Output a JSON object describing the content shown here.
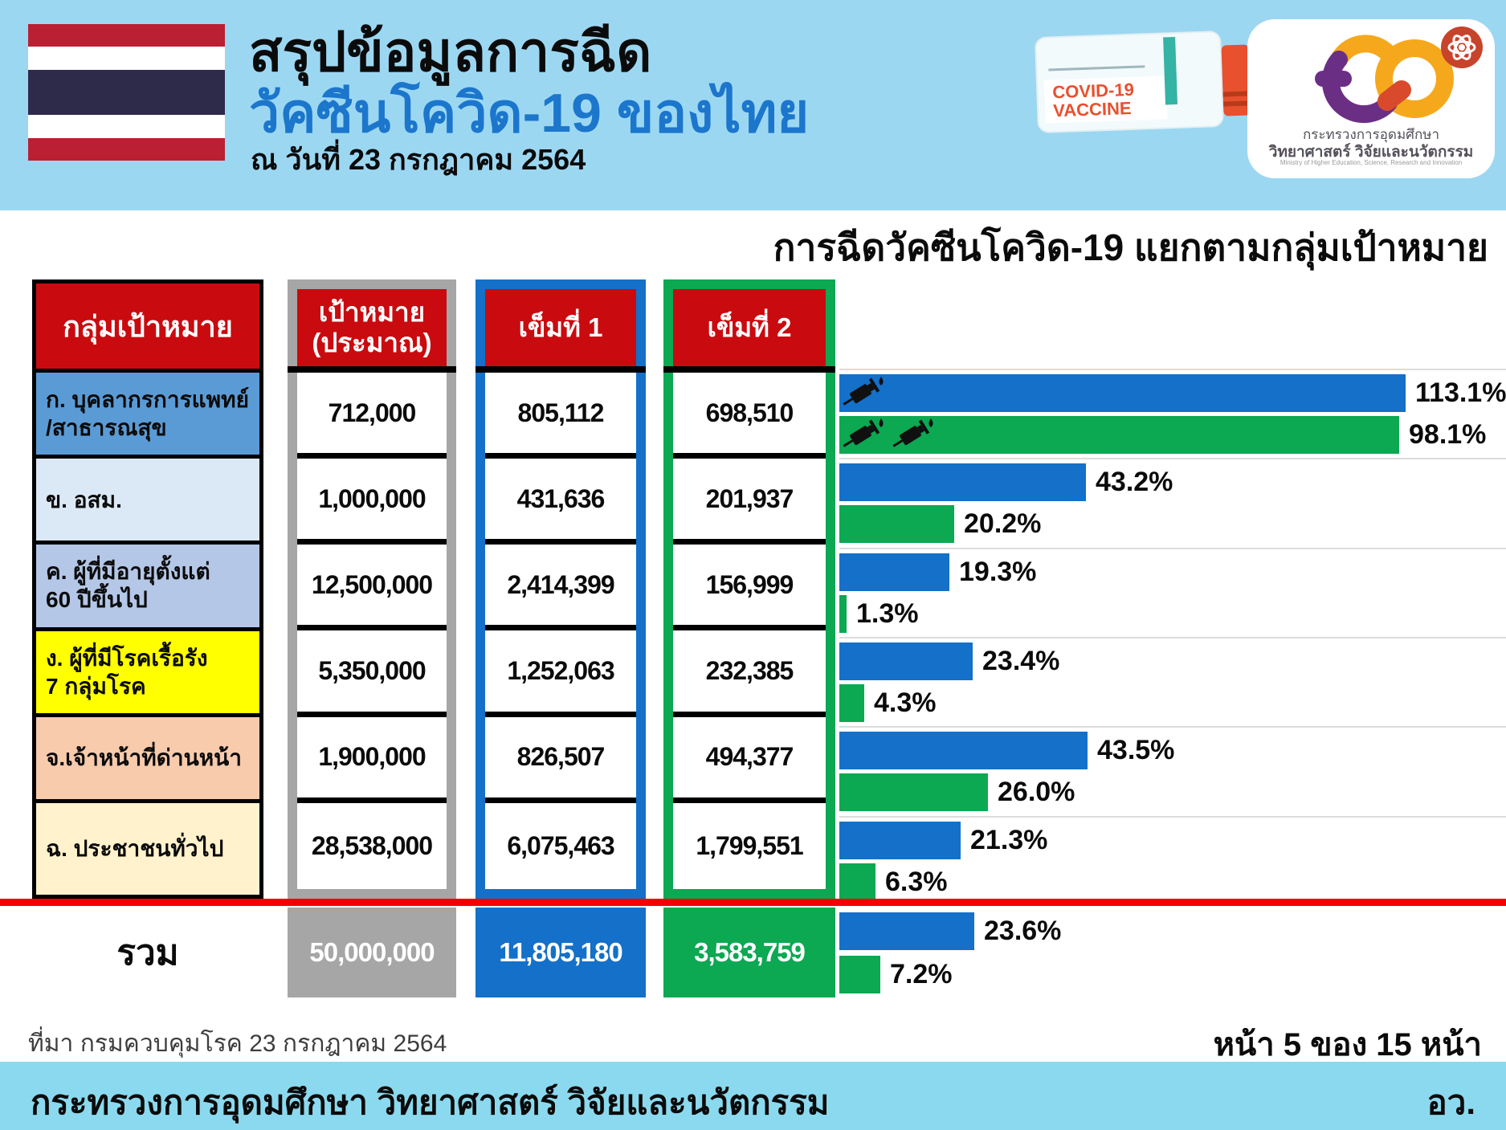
{
  "header": {
    "title_line1": "สรุปข้อมูลการฉีด",
    "title_line2": "วัคซีนโควิด-19 ของไทย",
    "date_line": "ณ วันที่ 23 กรกฎาคม 2564",
    "vial_label": "COVID-19 VACCINE",
    "logo": {
      "line1": "กระทรวงการอุดมศึกษา",
      "line2": "วิทยาศาสตร์ วิจัยและนวัตกรรม",
      "line3": "Ministry of Higher Education, Science, Research and Innovation"
    }
  },
  "chart_title": "การฉีดวัคซีนโควิด-19 แยกตามกลุ่มเป้าหมาย",
  "table": {
    "header_group": "กลุ่มเป้าหมาย",
    "header_target": "เป้าหมาย\n(ประมาณ)",
    "header_dose1": "เข็มที่ 1",
    "header_dose2": "เข็มที่ 2"
  },
  "groups": [
    {
      "label": "ก. บุคลากรการแพทย์\n/สาธารณสุข",
      "bg": "#5B9BD5",
      "target": "712,000",
      "dose1": "805,112",
      "dose2": "698,510",
      "dose1_pct": 113.1,
      "dose2_pct": 98.1,
      "syringes_dose1": 1,
      "syringes_dose2": 2
    },
    {
      "label": "ข. อสม.",
      "bg": "#DBE8F6",
      "target": "1,000,000",
      "dose1": "431,636",
      "dose2": "201,937",
      "dose1_pct": 43.2,
      "dose2_pct": 20.2,
      "syringes_dose1": 0,
      "syringes_dose2": 0
    },
    {
      "label": "ค. ผู้ที่มีอายุตั้งแต่\n60 ปีขึ้นไป",
      "bg": "#B4C7E7",
      "target": "12,500,000",
      "dose1": "2,414,399",
      "dose2": "156,999",
      "dose1_pct": 19.3,
      "dose2_pct": 1.3,
      "syringes_dose1": 0,
      "syringes_dose2": 0
    },
    {
      "label": "ง. ผู้ที่มีโรคเรื้อรัง\n7 กลุ่มโรค",
      "bg": "#FFFF00",
      "target": "5,350,000",
      "dose1": "1,252,063",
      "dose2": "232,385",
      "dose1_pct": 23.4,
      "dose2_pct": 4.3,
      "syringes_dose1": 0,
      "syringes_dose2": 0
    },
    {
      "label": "จ.เจ้าหน้าที่ด่านหน้า",
      "bg": "#F8CBAD",
      "target": "1,900,000",
      "dose1": "826,507",
      "dose2": "494,377",
      "dose1_pct": 43.5,
      "dose2_pct": 26.0,
      "syringes_dose1": 0,
      "syringes_dose2": 0
    },
    {
      "label": "ฉ. ประชาชนทั่วไป",
      "bg": "#FFF2CC",
      "target": "28,538,000",
      "dose1": "6,075,463",
      "dose2": "1,799,551",
      "dose1_pct": 21.3,
      "dose2_pct": 6.3,
      "syringes_dose1": 0,
      "syringes_dose2": 0
    }
  ],
  "total_row": {
    "label": "รวม",
    "target": "50,000,000",
    "dose1": "11,805,180",
    "dose2": "3,583,759",
    "dose1_pct": 23.6,
    "dose2_pct": 7.2
  },
  "chart_data": {
    "type": "bar",
    "orientation": "horizontal",
    "title": "การฉีดวัคซีนโควิด-19 แยกตามกลุ่มเป้าหมาย",
    "unit": "%",
    "categories": [
      "ก. บุคลากรการแพทย์/สาธารณสุข",
      "ข. อสม.",
      "ค. ผู้ที่มีอายุตั้งแต่ 60 ปีขึ้นไป",
      "ง. ผู้ที่มีโรคเรื้อรัง 7 กลุ่มโรค",
      "จ.เจ้าหน้าที่ด่านหน้า",
      "ฉ. ประชาชนทั่วไป",
      "รวม"
    ],
    "series": [
      {
        "name": "เข็มที่ 1",
        "color": "#1470C8",
        "values": [
          113.1,
          43.2,
          19.3,
          23.4,
          43.5,
          21.3,
          23.6
        ]
      },
      {
        "name": "เข็มที่ 2",
        "color": "#0CA852",
        "values": [
          98.1,
          20.2,
          1.3,
          4.3,
          26.0,
          6.3,
          7.2
        ]
      }
    ],
    "value_labels": true,
    "xlim": [
      0,
      115
    ],
    "gridlines": false,
    "legend": "none"
  },
  "footer": {
    "source": "ที่มา กรมควบคุมโรค 23 กรกฎาคม 2564",
    "page_label": "หน้า 5 ของ 15 หน้า",
    "ministry": "กระทรวงการอุดมศึกษา วิทยาศาสตร์ วิจัยและนวัตกรรม",
    "abbr": "อว."
  }
}
